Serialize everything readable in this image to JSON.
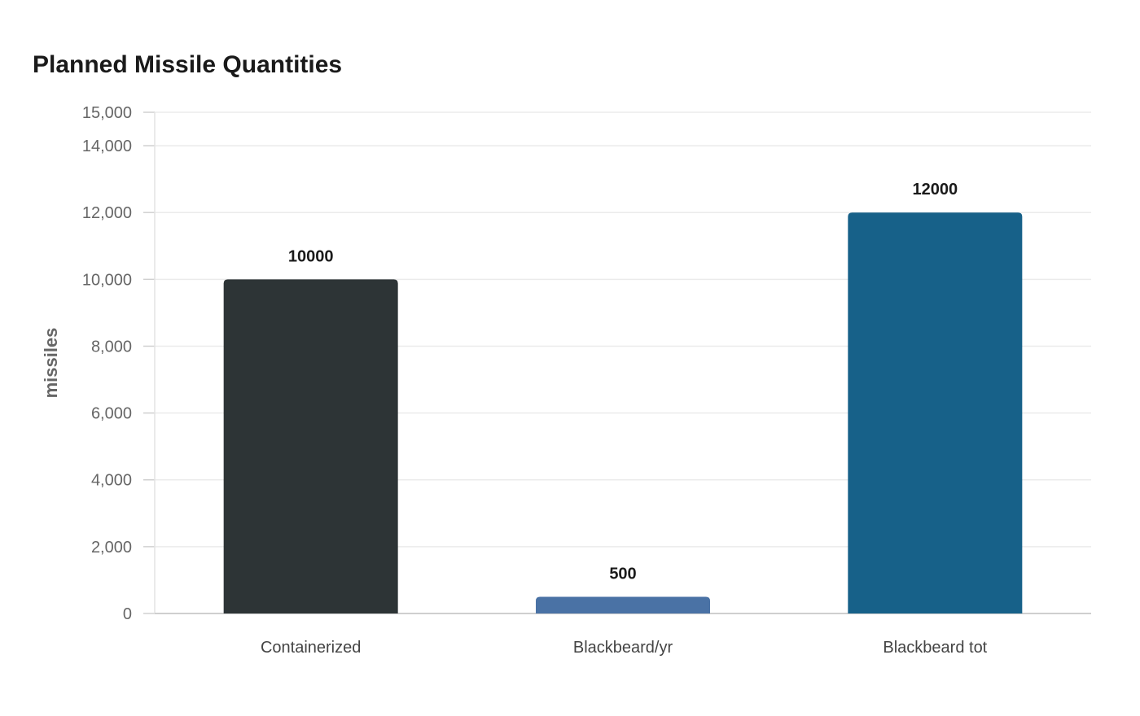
{
  "chart_data": {
    "type": "bar",
    "title": "Planned Missile Quantities",
    "xlabel": "",
    "ylabel": "missiles",
    "categories": [
      "Containerized",
      "Blackbeard/yr",
      "Blackbeard tot"
    ],
    "values": [
      10000,
      500,
      12000
    ],
    "data_labels": [
      "10000",
      "500",
      "12000"
    ],
    "colors": [
      "#2d3436",
      "#4a72a5",
      "#176189"
    ],
    "ylim": [
      0,
      15000
    ],
    "yticks": [
      0,
      2000,
      4000,
      6000,
      8000,
      10000,
      12000,
      14000,
      15000
    ],
    "ytick_labels": [
      "0",
      "2,000",
      "4,000",
      "6,000",
      "8,000",
      "10,000",
      "12,000",
      "14,000",
      "15,000"
    ],
    "grid": true,
    "legend": "none"
  }
}
